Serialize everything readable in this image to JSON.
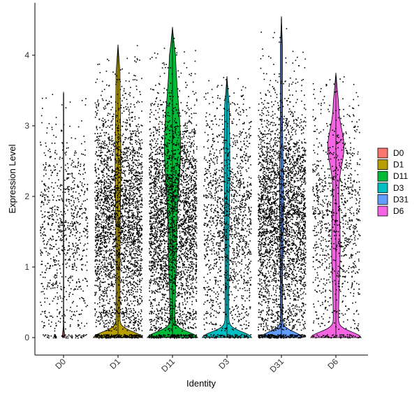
{
  "chart_data": {
    "type": "violin",
    "xlabel": "Identity",
    "ylabel": "Expression Level",
    "categories": [
      "D0",
      "D1",
      "D11",
      "D3",
      "D31",
      "D6"
    ],
    "ylim": [
      -0.25,
      4.6
    ],
    "yticks": [
      0,
      1,
      2,
      3,
      4
    ],
    "legend": {
      "placement": "right",
      "entries": [
        "D0",
        "D1",
        "D11",
        "D3",
        "D31",
        "D6"
      ]
    },
    "grid": false,
    "series": [
      {
        "name": "D0",
        "color": "#F8766D",
        "max": 3.48,
        "n_points": 900,
        "zero_density": 0.02,
        "upper_shape": "flat"
      },
      {
        "name": "D1",
        "color": "#B79F00",
        "max": 4.15,
        "n_points": 3000,
        "zero_density": 0.48,
        "upper_shape": "medium"
      },
      {
        "name": "D11",
        "color": "#00BA38",
        "max": 4.4,
        "n_points": 3200,
        "zero_density": 0.48,
        "upper_shape": "wide"
      },
      {
        "name": "D3",
        "color": "#00BFC4",
        "max": 3.7,
        "n_points": 1500,
        "zero_density": 0.48,
        "upper_shape": "medium"
      },
      {
        "name": "D31",
        "color": "#619CFF",
        "max": 4.55,
        "n_points": 3200,
        "zero_density": 0.42,
        "upper_shape": "thin"
      },
      {
        "name": "D6",
        "color": "#F564E3",
        "max": 3.75,
        "n_points": 1000,
        "zero_density": 0.48,
        "upper_shape": "bulge"
      }
    ]
  }
}
